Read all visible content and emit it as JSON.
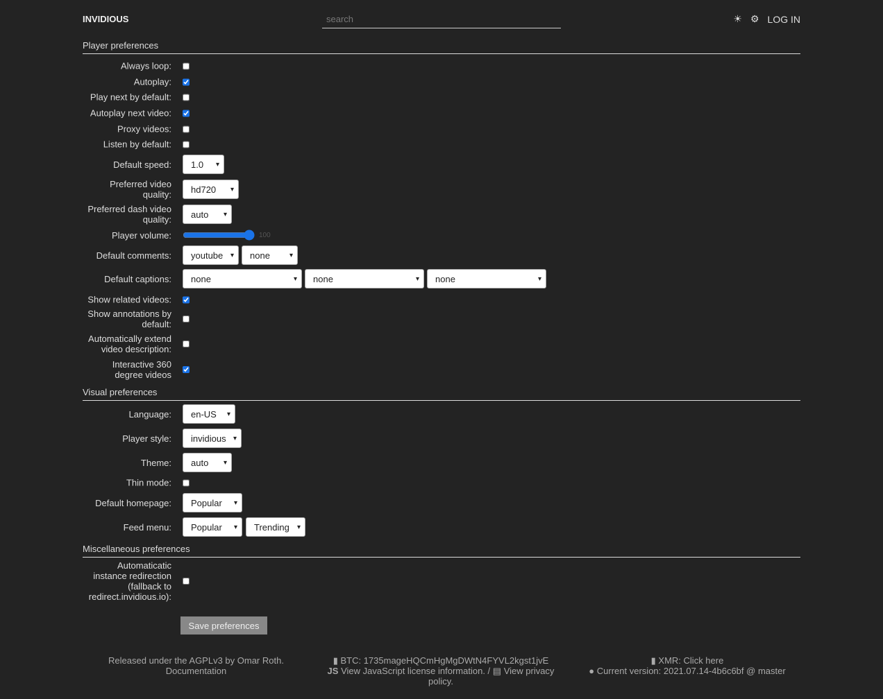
{
  "header": {
    "brand": "INVIDIOUS",
    "search_placeholder": "search",
    "theme_icon": "☀",
    "prefs_icon": "⚙",
    "login": "LOG IN"
  },
  "sections": [
    {
      "title": "Player preferences",
      "rows": [
        {
          "label": "Always loop:",
          "controls": [
            {
              "type": "checkbox",
              "checked": false
            }
          ]
        },
        {
          "label": "Autoplay:",
          "controls": [
            {
              "type": "checkbox",
              "checked": true
            }
          ]
        },
        {
          "label": "Play next by default:",
          "controls": [
            {
              "type": "checkbox",
              "checked": false
            }
          ]
        },
        {
          "label": "Autoplay next video:",
          "controls": [
            {
              "type": "checkbox",
              "checked": true
            }
          ]
        },
        {
          "label": "Proxy videos:",
          "controls": [
            {
              "type": "checkbox",
              "checked": false
            }
          ]
        },
        {
          "label": "Listen by default:",
          "controls": [
            {
              "type": "checkbox",
              "checked": false
            }
          ]
        },
        {
          "label": "Default speed:",
          "controls": [
            {
              "type": "select",
              "value": "1.0"
            }
          ]
        },
        {
          "label": "Preferred video quality:",
          "controls": [
            {
              "type": "select",
              "value": "hd720"
            }
          ]
        },
        {
          "label": "Preferred dash video quality:",
          "controls": [
            {
              "type": "select",
              "value": "auto"
            }
          ]
        },
        {
          "label": "Player volume:",
          "controls": [
            {
              "type": "range",
              "value": 100
            }
          ]
        },
        {
          "label": "Default comments:",
          "controls": [
            {
              "type": "select",
              "value": "youtube"
            },
            {
              "type": "select",
              "value": "none"
            }
          ]
        },
        {
          "label": "Default captions:",
          "controls": [
            {
              "type": "select",
              "value": "none"
            },
            {
              "type": "select",
              "value": "none"
            },
            {
              "type": "select",
              "value": "none"
            }
          ]
        },
        {
          "label": "Show related videos:",
          "controls": [
            {
              "type": "checkbox",
              "checked": true
            }
          ]
        },
        {
          "label": "Show annotations by default:",
          "controls": [
            {
              "type": "checkbox",
              "checked": false
            }
          ]
        },
        {
          "label": "Automatically extend video description:",
          "controls": [
            {
              "type": "checkbox",
              "checked": false
            }
          ]
        },
        {
          "label": "Interactive 360 degree videos",
          "controls": [
            {
              "type": "checkbox",
              "checked": true
            }
          ]
        }
      ]
    },
    {
      "title": "Visual preferences",
      "rows": [
        {
          "label": "Language:",
          "controls": [
            {
              "type": "select",
              "value": "en-US"
            }
          ]
        },
        {
          "label": "Player style:",
          "controls": [
            {
              "type": "select",
              "value": "invidious"
            }
          ]
        },
        {
          "label": "Theme:",
          "controls": [
            {
              "type": "select",
              "value": "auto"
            }
          ]
        },
        {
          "label": "Thin mode:",
          "controls": [
            {
              "type": "checkbox",
              "checked": false
            }
          ]
        },
        {
          "label": "Default homepage:",
          "controls": [
            {
              "type": "select",
              "value": "Popular"
            }
          ]
        },
        {
          "label": "Feed menu:",
          "controls": [
            {
              "type": "select",
              "value": "Popular"
            },
            {
              "type": "select",
              "value": "Trending"
            }
          ]
        }
      ]
    },
    {
      "title": "Miscellaneous preferences",
      "rows": [
        {
          "label": "Automaticatic instance redirection (fallback to redirect.invidious.io):",
          "controls": [
            {
              "type": "checkbox",
              "checked": false
            }
          ]
        }
      ]
    }
  ],
  "save_label": "Save preferences",
  "footer": {
    "released": "Released under the AGPLv3 by Omar Roth.",
    "documentation": "Documentation",
    "btc": "BTC: 1735mageHQCmHgMgDWtN4FYVL2kgst1jvE",
    "js_license": "View JavaScript license information.",
    "separator": " / ",
    "privacy": "View privacy policy.",
    "xmr": "XMR: Click here",
    "version": "Current version: 2021.07.14-4b6c6bf @ master"
  }
}
